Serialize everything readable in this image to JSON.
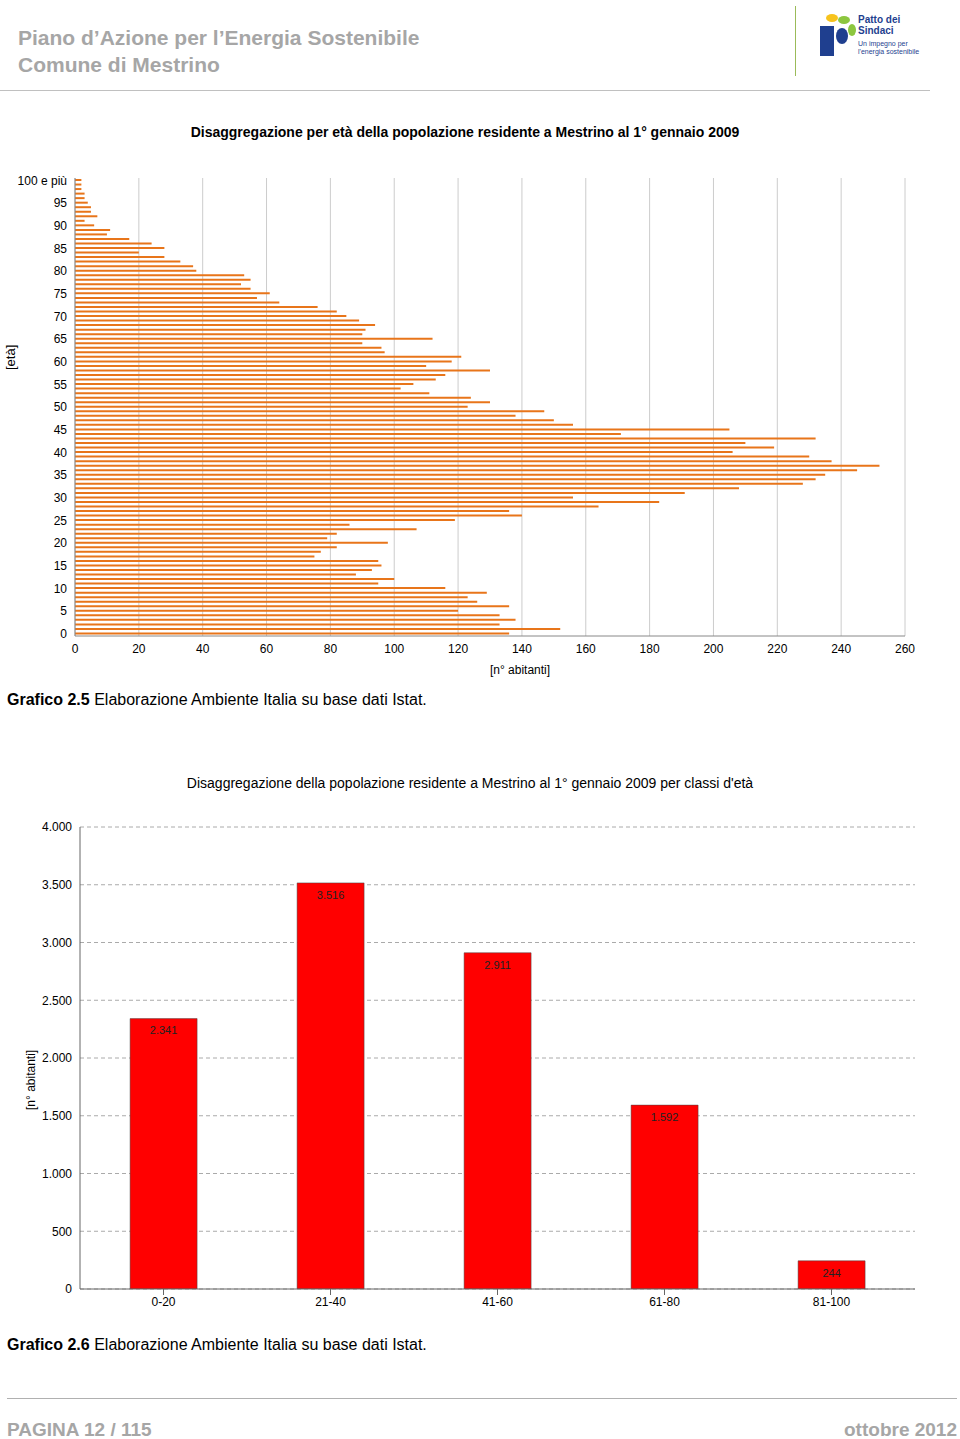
{
  "header": {
    "title": "Piano d’Azione per l’Energia Sostenibile",
    "subtitle": "Comune di Mestrino",
    "logo": [
      "Patto dei",
      "Sindaci",
      "Un impegno per",
      "l'energia sostenibile"
    ]
  },
  "chart_data": [
    {
      "type": "bar",
      "title": "Disaggregazione per età della popolazione residente a Mestrino al 1° gennaio 2009",
      "orientation": "horizontal",
      "x_label": "[n° abitanti]",
      "y_label": "[età]",
      "categories": [
        "0",
        null,
        null,
        null,
        null,
        "5",
        null,
        null,
        null,
        null,
        "10",
        null,
        null,
        null,
        null,
        "15",
        null,
        null,
        null,
        null,
        "20",
        null,
        null,
        null,
        null,
        "25",
        null,
        null,
        null,
        null,
        "30",
        null,
        null,
        null,
        null,
        "35",
        null,
        null,
        null,
        null,
        "40",
        null,
        null,
        null,
        null,
        "45",
        null,
        null,
        null,
        null,
        "50",
        null,
        null,
        null,
        null,
        "55",
        null,
        null,
        null,
        null,
        "60",
        null,
        null,
        null,
        null,
        "65",
        null,
        null,
        null,
        null,
        "70",
        null,
        null,
        null,
        null,
        "75",
        null,
        null,
        null,
        null,
        "80",
        null,
        null,
        null,
        null,
        "85",
        null,
        null,
        null,
        null,
        "90",
        null,
        null,
        null,
        null,
        "95",
        null,
        null,
        null,
        null,
        "100 e più"
      ],
      "values": [
        136,
        152,
        133,
        138,
        133,
        120,
        136,
        126,
        123,
        129,
        116,
        95,
        100,
        88,
        93,
        96,
        95,
        75,
        77,
        82,
        98,
        79,
        82,
        107,
        86,
        119,
        140,
        136,
        164,
        183,
        156,
        191,
        208,
        228,
        232,
        235,
        245,
        252,
        237,
        230,
        206,
        219,
        210,
        232,
        171,
        205,
        156,
        150,
        138,
        147,
        123,
        130,
        124,
        111,
        102,
        106,
        113,
        116,
        130,
        110,
        118,
        121,
        97,
        96,
        90,
        112,
        90,
        91,
        94,
        89,
        85,
        82,
        76,
        64,
        57,
        61,
        55,
        52,
        55,
        53,
        38,
        37,
        33,
        28,
        20,
        28,
        24,
        17,
        10,
        11,
        6,
        3,
        7,
        5,
        5,
        4,
        3,
        3,
        2,
        2,
        2
      ],
      "color": "#e8751a",
      "xlim": [
        0,
        260
      ],
      "xticks": [
        0,
        20,
        40,
        60,
        80,
        100,
        120,
        140,
        160,
        180,
        200,
        220,
        240,
        260
      ],
      "grid": true
    },
    {
      "type": "bar",
      "title": "Disaggregazione della popolazione residente a Mestrino al 1° gennaio 2009 per classi d'età",
      "y_label": "[n° abitanti]",
      "categories": [
        "0-20",
        "21-40",
        "41-60",
        "61-80",
        "81-100"
      ],
      "values": [
        2341,
        3516,
        2911,
        1592,
        244
      ],
      "value_labels": [
        "2.341",
        "3.516",
        "2.911",
        "1.592",
        "244"
      ],
      "data_labels": true,
      "color": "#ff0000",
      "ylim": [
        0,
        4000
      ],
      "yticks": [
        0,
        500,
        {
          "value": 1000,
          "label": "1.000"
        },
        {
          "value": 1500,
          "label": "1.500"
        },
        {
          "value": 2000,
          "label": "2.000"
        },
        {
          "value": 2500,
          "label": "2.500"
        },
        {
          "value": 3000,
          "label": "3.000"
        },
        {
          "value": 3500,
          "label": "3.500"
        },
        {
          "value": 4000,
          "label": "4.000"
        }
      ],
      "grid": true
    }
  ],
  "captions": [
    {
      "label": "Grafico 2.5",
      "text": "Elaborazione Ambiente Italia su base dati Istat."
    },
    {
      "label": "Grafico 2.6",
      "text": "Elaborazione Ambiente Italia su base dati Istat."
    }
  ],
  "footer": {
    "page": "PAGINA 12 / 115",
    "date": "ottobre 2012"
  }
}
